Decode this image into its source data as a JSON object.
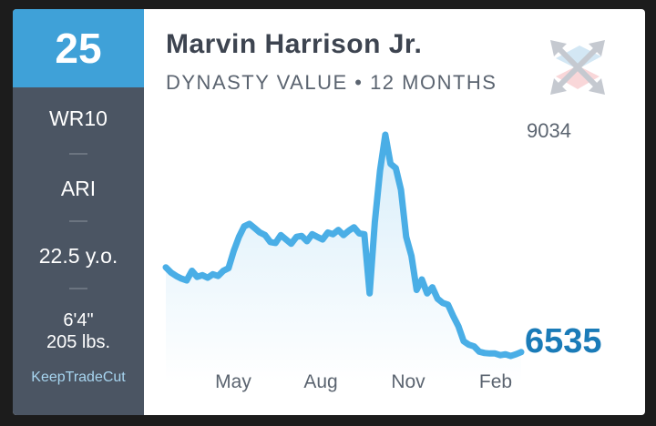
{
  "card": {
    "rank": "25",
    "position_rank": "WR10",
    "team": "ARI",
    "age": "22.5 y.o.",
    "height": "6'4\"",
    "weight": "205 lbs.",
    "brand": "KeepTradeCut",
    "title": "Marvin Harrison Jr.",
    "subtitle": "DYNASTY VALUE • 12 MONTHS",
    "logo": "arrows-cross-icon"
  },
  "colors": {
    "rank_bg": "#3fa1d8",
    "panel_bg": "#4b5563",
    "line": "#4aaee6",
    "current_value": "#1a7bb8"
  },
  "chart_data": {
    "type": "area",
    "title": "",
    "xlabel": "",
    "ylabel": "",
    "x_ticks": [
      "May",
      "Aug",
      "Nov",
      "Feb"
    ],
    "max_label": "9034",
    "current_label": "6535",
    "ylim": [
      6460,
      9034
    ],
    "grid": false,
    "series": [
      {
        "values": [
          7510,
          7450,
          7410,
          7380,
          7360,
          7470,
          7400,
          7420,
          7390,
          7430,
          7410,
          7470,
          7500,
          7700,
          7860,
          7980,
          8010,
          7960,
          7910,
          7880,
          7800,
          7790,
          7880,
          7830,
          7780,
          7860,
          7870,
          7810,
          7890,
          7860,
          7830,
          7910,
          7890,
          7940,
          7880,
          7930,
          7970,
          7900,
          7890,
          7210,
          8030,
          8620,
          9034,
          8700,
          8650,
          8400,
          7860,
          7640,
          7250,
          7370,
          7210,
          7280,
          7150,
          7100,
          7080,
          6950,
          6830,
          6660,
          6620,
          6600,
          6540,
          6525,
          6520,
          6520,
          6500,
          6510,
          6490,
          6510,
          6535
        ]
      }
    ]
  }
}
